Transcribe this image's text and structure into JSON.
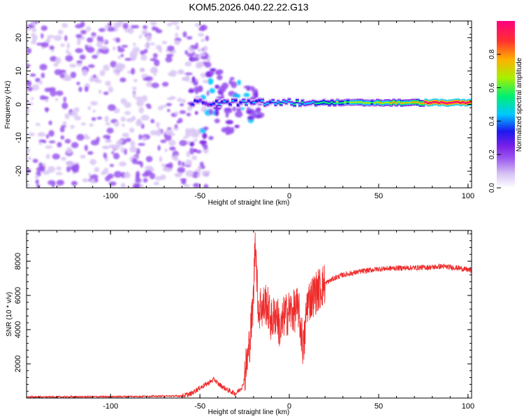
{
  "title": "KOM5.2026.040.22.22.G13",
  "colors": {
    "snr_line": "#ee2a2a",
    "frame": "#000000",
    "background": "#ffffff",
    "colormap": [
      "#ffffff",
      "#d9c6f5",
      "#9a55ee",
      "#7a1fe8",
      "#1a1aee",
      "#00c8ff",
      "#00f070",
      "#a8f000",
      "#ffb000",
      "#ff3030",
      "#ff0080"
    ]
  },
  "chart_data": [
    {
      "id": "spectrogram",
      "type": "heatmap",
      "xlabel": "Height of straight line (km)",
      "ylabel": "Frequency (Hz)",
      "xlim": [
        -147,
        102
      ],
      "ylim": [
        -25,
        25
      ],
      "xticks": [
        -100,
        -50,
        0,
        50,
        100
      ],
      "yticks": [
        -20,
        -10,
        0,
        10,
        20
      ],
      "xtick_labels": [
        "-100",
        "-50",
        "0",
        "50",
        "100"
      ],
      "ytick_labels": [
        "-20",
        "-10",
        "0",
        "10",
        "20"
      ],
      "colorbar": {
        "label": "Normalized spectral amplitude",
        "range": [
          0,
          1
        ],
        "ticks": [
          0.0,
          0.2,
          0.4,
          0.6,
          0.8
        ],
        "tick_labels": [
          "0.0",
          "0.2",
          "0.4",
          "0.6",
          "0.8"
        ]
      },
      "signal_band": {
        "center_hz": 0.5,
        "start_km": -55,
        "end_km": 102,
        "peak_amplitude": 0.95,
        "peak_km": [
          75,
          100
        ]
      },
      "noise_region_km": [
        -147,
        -45
      ],
      "scatter_region_km": [
        -55,
        -15
      ]
    },
    {
      "id": "snr",
      "type": "line",
      "xlabel": "Height of straight line (km)",
      "ylabel": "SNR (10 * v/v)",
      "xlim": [
        -147,
        102
      ],
      "ylim": [
        0,
        9800
      ],
      "xticks": [
        -100,
        -50,
        0,
        50,
        100
      ],
      "yticks": [
        2000,
        4000,
        6000,
        8000
      ],
      "xtick_labels": [
        "-100",
        "-50",
        "0",
        "50",
        "100"
      ],
      "ytick_labels": [
        "2000",
        "4000",
        "6000",
        "8000"
      ],
      "series": [
        {
          "name": "SNR",
          "x": [
            -147,
            -100,
            -60,
            -55,
            -50,
            -45,
            -42,
            -40,
            -35,
            -30,
            -26,
            -23,
            -21,
            -20,
            -19,
            -18,
            -17,
            -16,
            -15,
            -13,
            -10,
            -7,
            -5,
            -3,
            -1,
            0,
            2,
            5,
            8,
            10,
            15,
            20,
            25,
            30,
            35,
            40,
            50,
            60,
            70,
            80,
            85,
            90,
            95,
            100,
            102
          ],
          "values": [
            60,
            80,
            120,
            250,
            600,
            900,
            1100,
            850,
            500,
            250,
            700,
            2500,
            4500,
            6000,
            9700,
            6500,
            5000,
            5500,
            5200,
            5600,
            4500,
            5000,
            3800,
            4800,
            4900,
            5100,
            5000,
            5300,
            2800,
            5600,
            6200,
            6700,
            7000,
            7200,
            7300,
            7400,
            7550,
            7600,
            7620,
            7650,
            7700,
            7650,
            7600,
            7500,
            7450
          ]
        }
      ]
    }
  ]
}
